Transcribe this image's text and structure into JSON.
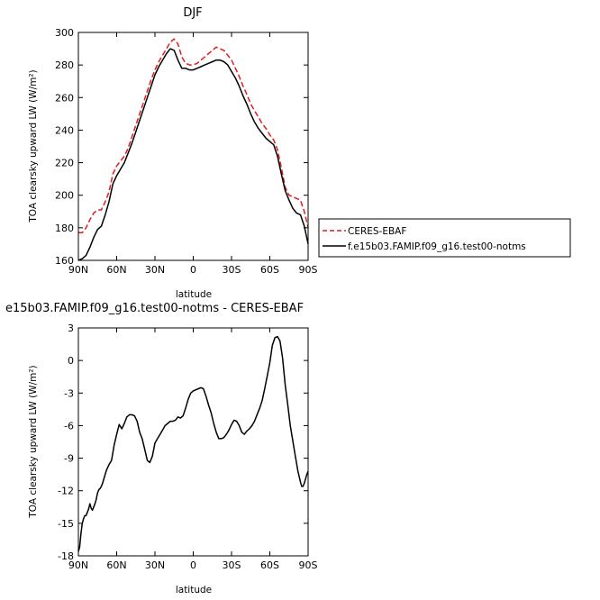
{
  "chart_data": [
    {
      "type": "line",
      "title": "DJF",
      "xlabel": "latitude",
      "ylabel": "TOA clearsky upward LW (W/m²)",
      "x_ticks": [
        "90N",
        "60N",
        "30N",
        "0",
        "30S",
        "60S",
        "90S"
      ],
      "xlim": [
        90,
        -90
      ],
      "ylim": [
        160,
        300
      ],
      "y_ticks": [
        160,
        180,
        200,
        220,
        240,
        260,
        280,
        300
      ],
      "grid": false,
      "legend_position": "right",
      "series": [
        {
          "name": "CERES-EBAF",
          "color": "#e41a1c",
          "style": "dashed",
          "x": [
            90,
            87,
            84,
            81,
            78,
            75,
            72,
            69,
            66,
            63,
            60,
            57,
            54,
            51,
            48,
            45,
            42,
            39,
            36,
            33,
            30,
            27,
            24,
            21,
            18,
            15,
            12,
            9,
            6,
            3,
            0,
            -3,
            -6,
            -9,
            -12,
            -15,
            -18,
            -21,
            -24,
            -27,
            -30,
            -33,
            -36,
            -39,
            -42,
            -45,
            -48,
            -51,
            -54,
            -57,
            -60,
            -63,
            -66,
            -69,
            -72,
            -75,
            -78,
            -81,
            -84,
            -87,
            -90
          ],
          "y": [
            177,
            177,
            180,
            185,
            189,
            191,
            191,
            196,
            202,
            213,
            218,
            221,
            224,
            229,
            236,
            243,
            250,
            257,
            264,
            271,
            277,
            282,
            286,
            290,
            294,
            296,
            293,
            285,
            281,
            280,
            280,
            281,
            283,
            285,
            287,
            289,
            291,
            290,
            289,
            286,
            283,
            278,
            273,
            267,
            262,
            256,
            252,
            248,
            244,
            241,
            237,
            234,
            228,
            217,
            205,
            200,
            199,
            198,
            197,
            190,
            180
          ]
        },
        {
          "name": "f.e15b03.FAMIP.f09_g16.test00-notms",
          "color": "#000000",
          "style": "solid",
          "x": [
            90,
            87,
            84,
            81,
            78,
            75,
            72,
            69,
            66,
            63,
            60,
            57,
            54,
            51,
            48,
            45,
            42,
            39,
            36,
            33,
            30,
            27,
            24,
            21,
            18,
            15,
            12,
            9,
            6,
            3,
            0,
            -3,
            -6,
            -9,
            -12,
            -15,
            -18,
            -21,
            -24,
            -27,
            -30,
            -33,
            -36,
            -39,
            -42,
            -45,
            -48,
            -51,
            -54,
            -57,
            -60,
            -63,
            -66,
            -69,
            -72,
            -75,
            -78,
            -81,
            -84,
            -87,
            -90
          ],
          "y": [
            160,
            161,
            163,
            168,
            174,
            179,
            181,
            188,
            196,
            207,
            212,
            216,
            220,
            226,
            232,
            239,
            246,
            253,
            260,
            267,
            274,
            279,
            283,
            287,
            290,
            289,
            283,
            278,
            278,
            277,
            277,
            278,
            279,
            280,
            281,
            282,
            283,
            283,
            282,
            280,
            276,
            272,
            267,
            261,
            256,
            250,
            245,
            241,
            238,
            235,
            233,
            231,
            224,
            213,
            203,
            197,
            192,
            189,
            188,
            181,
            170
          ]
        }
      ]
    },
    {
      "type": "line",
      "title": "e15b03.FAMIP.f09_g16.test00-notms  -  CERES-EBAF",
      "xlabel": "latitude",
      "ylabel": "TOA clearsky upward LW (W/m²)",
      "x_ticks": [
        "90N",
        "60N",
        "30N",
        "0",
        "30S",
        "60S",
        "90S"
      ],
      "xlim": [
        90,
        -90
      ],
      "ylim": [
        -18,
        3
      ],
      "y_ticks": [
        -18,
        -15,
        -12,
        -9,
        -6,
        -3,
        0,
        3
      ],
      "grid": false,
      "series": [
        {
          "color": "#000000",
          "style": "solid",
          "x": [
            90,
            89,
            88,
            87,
            86,
            85,
            84,
            83,
            82,
            81,
            80,
            79,
            78,
            77,
            76,
            75,
            74,
            73,
            72,
            71,
            70,
            68,
            66,
            64,
            62,
            60,
            58,
            56,
            54,
            52,
            50,
            48,
            46,
            44,
            42,
            40,
            38,
            36,
            34,
            32,
            30,
            28,
            26,
            24,
            22,
            20,
            18,
            16,
            14,
            12,
            10,
            8,
            6,
            4,
            2,
            0,
            -2,
            -4,
            -6,
            -8,
            -10,
            -12,
            -14,
            -16,
            -18,
            -20,
            -22,
            -24,
            -26,
            -28,
            -30,
            -32,
            -34,
            -36,
            -38,
            -40,
            -42,
            -44,
            -46,
            -48,
            -50,
            -52,
            -54,
            -56,
            -58,
            -60,
            -62,
            -64,
            -66,
            -68,
            -70,
            -72,
            -74,
            -76,
            -78,
            -80,
            -82,
            -84,
            -85,
            -86,
            -87,
            -88,
            -89,
            -90
          ],
          "y": [
            -17.6,
            -17.2,
            -16.0,
            -15.0,
            -14.6,
            -14.3,
            -14.3,
            -14.0,
            -13.7,
            -13.2,
            -13.6,
            -13.8,
            -13.5,
            -13.2,
            -12.8,
            -12.2,
            -11.9,
            -11.8,
            -11.6,
            -11.3,
            -10.9,
            -10.1,
            -9.6,
            -9.2,
            -7.8,
            -6.8,
            -5.9,
            -6.3,
            -5.8,
            -5.2,
            -5.0,
            -5.0,
            -5.1,
            -5.6,
            -6.6,
            -7.2,
            -8.2,
            -9.2,
            -9.4,
            -8.8,
            -7.6,
            -7.2,
            -6.8,
            -6.4,
            -6.0,
            -5.8,
            -5.6,
            -5.6,
            -5.5,
            -5.2,
            -5.3,
            -5.1,
            -4.4,
            -3.6,
            -3.0,
            -2.8,
            -2.7,
            -2.6,
            -2.5,
            -2.6,
            -3.3,
            -4.1,
            -4.8,
            -5.8,
            -6.6,
            -7.2,
            -7.2,
            -7.1,
            -6.8,
            -6.4,
            -5.9,
            -5.5,
            -5.6,
            -6.0,
            -6.6,
            -6.8,
            -6.5,
            -6.3,
            -6.0,
            -5.6,
            -5.0,
            -4.4,
            -3.7,
            -2.6,
            -1.4,
            -0.2,
            1.4,
            2.1,
            2.2,
            1.8,
            0.2,
            -2.2,
            -4.0,
            -6.0,
            -7.4,
            -8.8,
            -10.2,
            -11.2,
            -11.6,
            -11.6,
            -11.3,
            -10.9,
            -10.5,
            -10.2
          ]
        }
      ]
    }
  ]
}
